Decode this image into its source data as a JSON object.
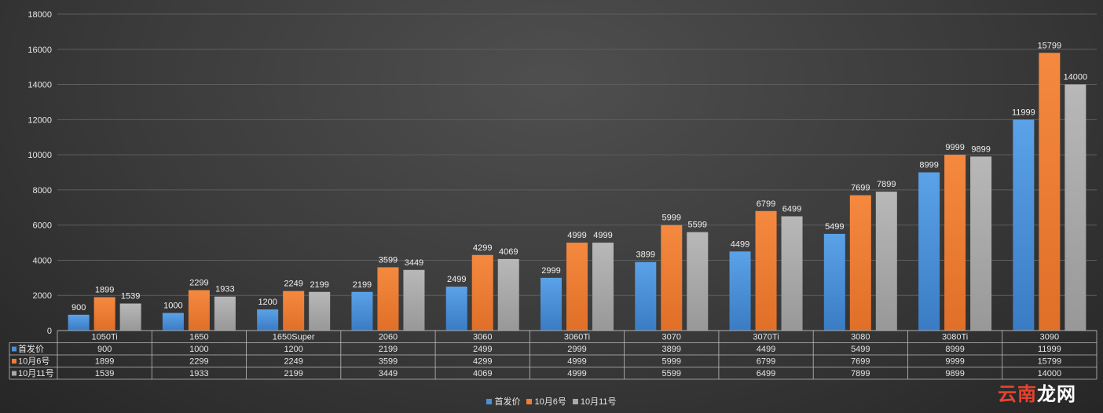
{
  "chart_data": {
    "type": "bar",
    "title": "",
    "xlabel": "",
    "ylabel": "",
    "ylim": [
      0,
      18000
    ],
    "yticks": [
      0,
      2000,
      4000,
      6000,
      8000,
      10000,
      12000,
      14000,
      16000,
      18000
    ],
    "grid": true,
    "legend": "bottom",
    "data_table": true,
    "categories": [
      "1050Ti",
      "1650",
      "1650Super",
      "2060",
      "3060",
      "3060Ti",
      "3070",
      "3070Ti",
      "3080",
      "3080Ti",
      "3090"
    ],
    "series": [
      {
        "name": "首发价",
        "color": "#4a90d9",
        "values": [
          900,
          1000,
          1200,
          2199,
          2499,
          2999,
          3899,
          4499,
          5499,
          8999,
          11999
        ]
      },
      {
        "name": "10月6号",
        "color": "#ee7d35",
        "values": [
          1899,
          2299,
          2249,
          3599,
          4299,
          4999,
          5999,
          6799,
          7699,
          9999,
          15799
        ]
      },
      {
        "name": "10月11号",
        "color": "#a9a9a9",
        "values": [
          1539,
          1933,
          2199,
          3449,
          4069,
          4999,
          5599,
          6499,
          7899,
          9899,
          14000
        ]
      }
    ]
  },
  "watermark": {
    "accent": "云南",
    "rest": "龙网"
  }
}
